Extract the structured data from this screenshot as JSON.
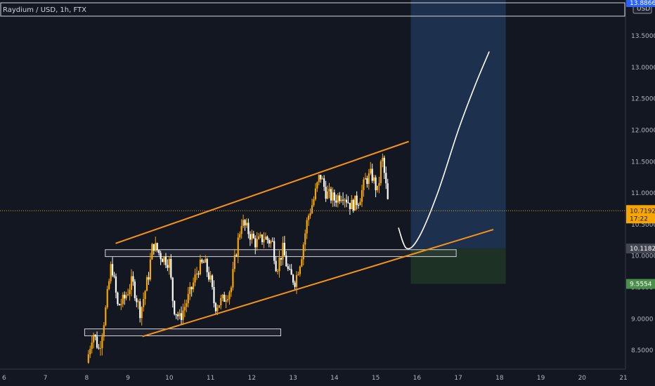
{
  "chart_data": {
    "type": "candlestick",
    "title": "Raydium / USD, 1h, FTX",
    "currency": "USD",
    "x_ticks": [
      "6",
      "7",
      "8",
      "9",
      "10",
      "11",
      "12",
      "13",
      "14",
      "15",
      "16",
      "17",
      "18",
      "19",
      "20",
      "21"
    ],
    "y_ticks": [
      "8.5000",
      "9.0000",
      "9.5000",
      "10.0000",
      "10.5000",
      "11.0000",
      "11.5000",
      "12.0000",
      "12.5000",
      "13.0000",
      "13.5000"
    ],
    "ylim": [
      8.2,
      14.07
    ],
    "xlim": [
      5.9,
      21.05
    ],
    "current_price": {
      "label": "10.7192",
      "countdown": "17:22",
      "value": 10.7192,
      "color": "#f7a600"
    },
    "entry_price": {
      "label": "10.1182",
      "value": 10.1182
    },
    "stop_price": {
      "label": "9.5554",
      "value": 9.5554
    },
    "top_price_label": "13.8866",
    "price_path": [
      [
        8.0,
        8.3
      ],
      [
        8.15,
        8.8
      ],
      [
        8.3,
        8.5
      ],
      [
        8.45,
        9.1
      ],
      [
        8.6,
        9.9
      ],
      [
        8.75,
        9.2
      ],
      [
        8.9,
        9.3
      ],
      [
        9.1,
        9.6
      ],
      [
        9.3,
        9.1
      ],
      [
        9.5,
        9.7
      ],
      [
        9.6,
        10.2
      ],
      [
        9.8,
        10.0
      ],
      [
        10.0,
        9.9
      ],
      [
        10.1,
        9.2
      ],
      [
        10.25,
        9.0
      ],
      [
        10.5,
        9.4
      ],
      [
        10.7,
        9.8
      ],
      [
        10.85,
        9.9
      ],
      [
        11.0,
        9.6
      ],
      [
        11.1,
        9.2
      ],
      [
        11.3,
        9.3
      ],
      [
        11.5,
        9.5
      ],
      [
        11.6,
        10.0
      ],
      [
        11.75,
        10.55
      ],
      [
        11.9,
        10.4
      ],
      [
        12.1,
        10.2
      ],
      [
        12.3,
        10.3
      ],
      [
        12.5,
        10.2
      ],
      [
        12.6,
        9.8
      ],
      [
        12.75,
        10.1
      ],
      [
        12.9,
        9.7
      ],
      [
        13.05,
        9.6
      ],
      [
        13.2,
        10.0
      ],
      [
        13.35,
        10.6
      ],
      [
        13.5,
        10.9
      ],
      [
        13.65,
        11.3
      ],
      [
        13.8,
        11.0
      ],
      [
        14.0,
        10.9
      ],
      [
        14.2,
        11.0
      ],
      [
        14.4,
        10.8
      ],
      [
        14.6,
        10.9
      ],
      [
        14.75,
        11.2
      ],
      [
        14.9,
        11.3
      ],
      [
        15.05,
        11.0
      ],
      [
        15.15,
        11.6
      ],
      [
        15.25,
        11.1
      ],
      [
        15.32,
        10.7
      ]
    ],
    "channel_upper": [
      [
        8.7,
        10.2
      ],
      [
        15.8,
        11.82
      ]
    ],
    "channel_lower": [
      [
        9.35,
        8.72
      ],
      [
        17.85,
        10.42
      ]
    ],
    "support_zones": [
      {
        "x": [
          8.45,
          16.95
        ],
        "y": [
          9.99,
          10.1
        ]
      },
      {
        "x": [
          7.95,
          12.7
        ],
        "y": [
          8.73,
          8.84
        ]
      }
    ],
    "projection_curve": [
      [
        15.55,
        10.45
      ],
      [
        15.75,
        10.12
      ],
      [
        16.05,
        10.3
      ],
      [
        16.5,
        11.0
      ],
      [
        17.0,
        12.0
      ],
      [
        17.4,
        12.7
      ],
      [
        17.75,
        13.25
      ]
    ],
    "position": {
      "x": [
        15.85,
        18.15
      ],
      "target_top": 14.07,
      "entry": 10.1182,
      "stop": 9.5554,
      "profit_color": "#1e3250",
      "loss_color": "#1f3326"
    },
    "colors": {
      "up": "#f7a600",
      "down": "#ffffff",
      "channel": "#f7931a",
      "curve": "#ffffff"
    }
  }
}
